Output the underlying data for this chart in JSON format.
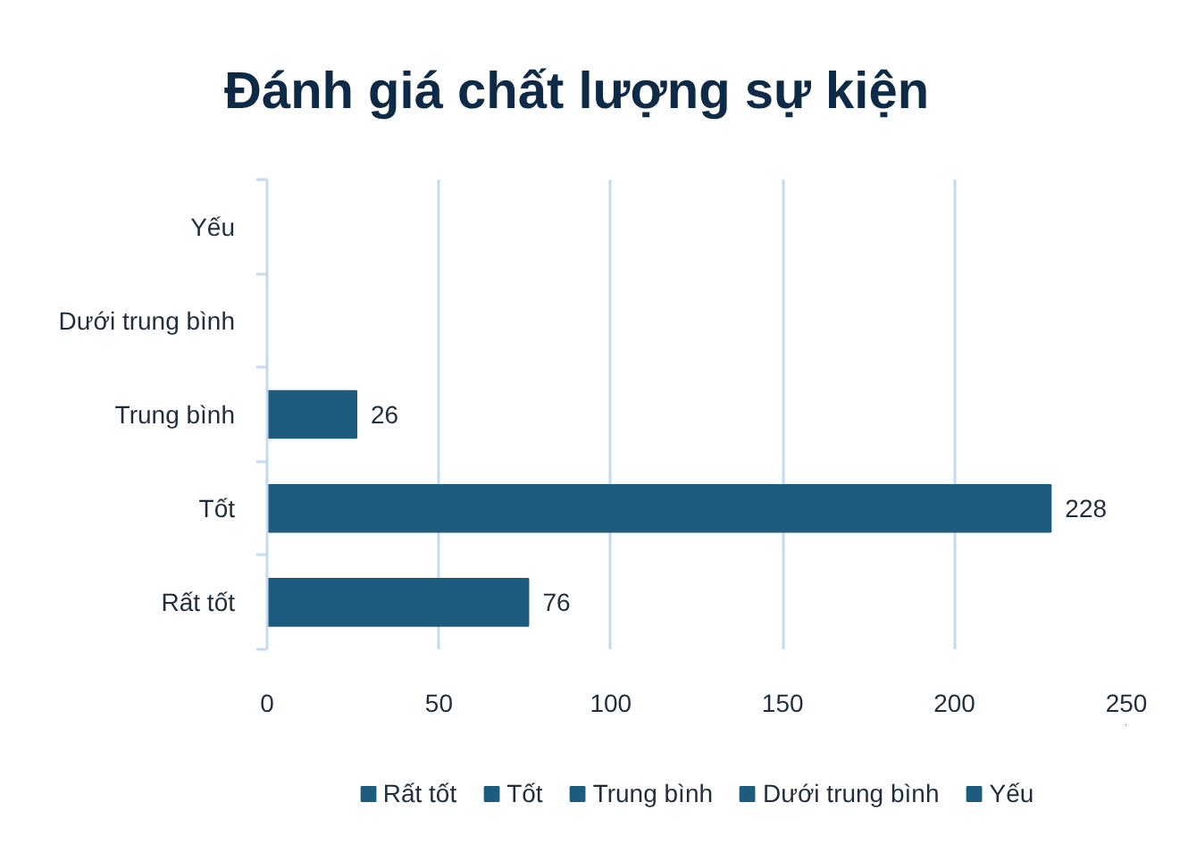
{
  "chart_data": {
    "type": "bar",
    "orientation": "horizontal",
    "stacked": true,
    "title": "Đánh giá chất lượng sự kiện",
    "categories": [
      "Yếu",
      "Dưới trung bình",
      "Trung bình",
      "Tốt",
      "Rất tốt"
    ],
    "series": [
      {
        "name": "Rất tốt",
        "color": "#1d5b7f",
        "values": [
          null,
          null,
          null,
          null,
          76
        ]
      },
      {
        "name": "Tốt",
        "color": "#1d5b7f",
        "values": [
          null,
          null,
          null,
          228,
          null
        ]
      },
      {
        "name": "Trung bình",
        "color": "#1d5b7f",
        "values": [
          null,
          null,
          26,
          null,
          null
        ]
      },
      {
        "name": "Dưới trung bình",
        "color": "#1d5b7f",
        "values": [
          null,
          null,
          null,
          null,
          null
        ]
      },
      {
        "name": "Yếu",
        "color": "#1d5b7f",
        "values": [
          null,
          null,
          null,
          null,
          null
        ]
      }
    ],
    "xlim": [
      0,
      250
    ],
    "xticks": [
      0,
      50,
      100,
      150,
      200,
      250
    ],
    "grid": "x",
    "legend": "bottom",
    "data_labels": true
  }
}
